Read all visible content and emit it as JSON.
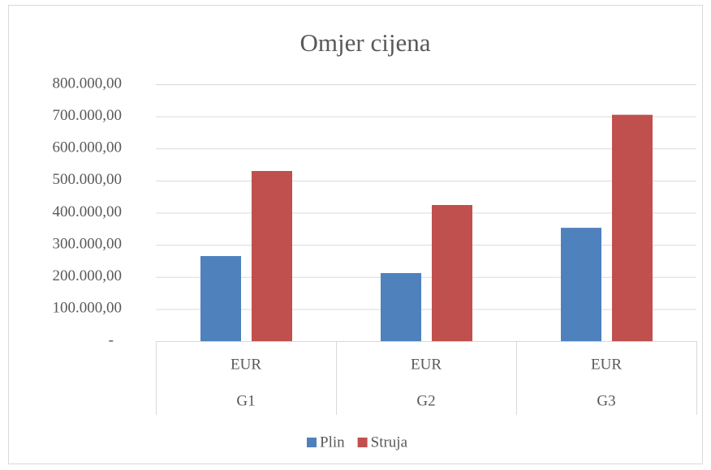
{
  "chart_data": {
    "type": "bar",
    "title": "Omjer cijena",
    "categories": [
      "EUR",
      "EUR",
      "EUR"
    ],
    "groups": [
      "G1",
      "G2",
      "G3"
    ],
    "series": [
      {
        "name": "Plin",
        "color": "#4f81bd",
        "values": [
          265000,
          212000,
          353000
        ]
      },
      {
        "name": "Struja",
        "color": "#c0504d",
        "values": [
          530000,
          424000,
          705000
        ]
      }
    ],
    "ylim": [
      0,
      800000
    ],
    "yticks": [
      {
        "value": 0,
        "label": "-"
      },
      {
        "value": 100000,
        "label": "100.000,00"
      },
      {
        "value": 200000,
        "label": "200.000,00"
      },
      {
        "value": 300000,
        "label": "300.000,00"
      },
      {
        "value": 400000,
        "label": "400.000,00"
      },
      {
        "value": 500000,
        "label": "500.000,00"
      },
      {
        "value": 600000,
        "label": "600.000,00"
      },
      {
        "value": 700000,
        "label": "700.000,00"
      },
      {
        "value": 800000,
        "label": "800.000,00"
      }
    ],
    "grid": true,
    "legend": "bottom"
  }
}
